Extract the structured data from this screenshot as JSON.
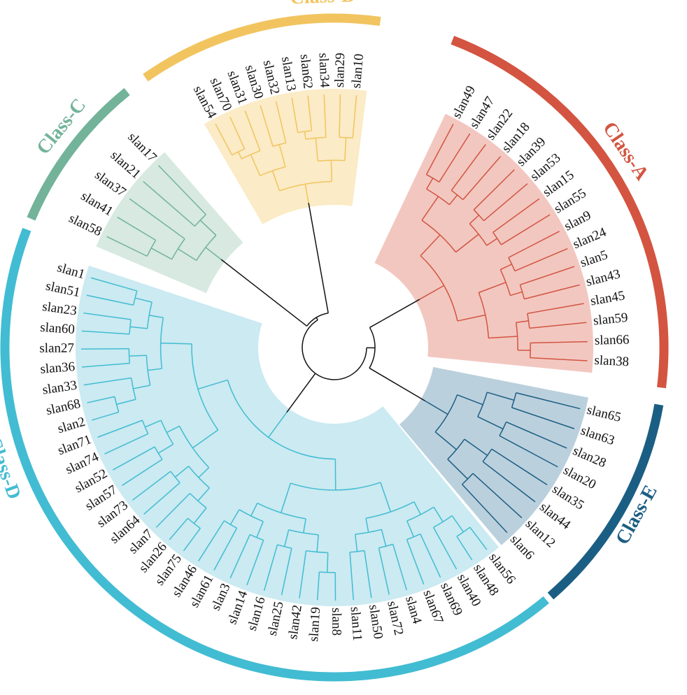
{
  "figure": {
    "type": "circular-phylogenetic-tree",
    "root_color": "#111111"
  },
  "classes": [
    {
      "id": "A",
      "label": "Class-A",
      "color": "#D35440",
      "fill": "#F2C7C0",
      "leaves": [
        "slan49",
        "slan47",
        "slan22",
        "slan18",
        "slan39",
        "slan53",
        "slan15",
        "slan55",
        "slan9",
        "slan24",
        "slan5",
        "slan43",
        "slan45",
        "slan59",
        "slan66",
        "slan38"
      ]
    },
    {
      "id": "E",
      "label": "Class-E",
      "color": "#1B5E83",
      "fill": "#BBD0DD",
      "leaves": [
        "slan65",
        "slan63",
        "slan28",
        "slan20",
        "slan35",
        "slan44",
        "slan12",
        "slan6"
      ]
    },
    {
      "id": "D",
      "label": "Class-D",
      "color": "#42BCD2",
      "fill": "#CBEAF1",
      "leaves": [
        "slan56",
        "slan48",
        "slan40",
        "slan69",
        "slan67",
        "slan4",
        "slan72",
        "slan50",
        "slan11",
        "slan8",
        "slan19",
        "slan42",
        "slan25",
        "slan16",
        "slan14",
        "slan3",
        "slan61",
        "slan46",
        "slan75",
        "slan26",
        "slan7",
        "slan64",
        "slan73",
        "slan57",
        "slan52",
        "slan74",
        "slan71",
        "slan2",
        "slan68",
        "slan33",
        "slan36",
        "slan27",
        "slan60",
        "slan23",
        "slan51",
        "slan1"
      ]
    },
    {
      "id": "C",
      "label": "Class-C",
      "color": "#72B39A",
      "fill": "#D7E9E0",
      "leaves": [
        "slan58",
        "slan41",
        "slan37",
        "slan21",
        "slan17"
      ]
    },
    {
      "id": "B",
      "label": "Class-B",
      "color": "#F2C45F",
      "fill": "#FBEBC6",
      "leaves": [
        "slan54",
        "slan70",
        "slan31",
        "slan30",
        "slan32",
        "slan13",
        "slan62",
        "slan34",
        "slan29",
        "slan10"
      ]
    }
  ]
}
